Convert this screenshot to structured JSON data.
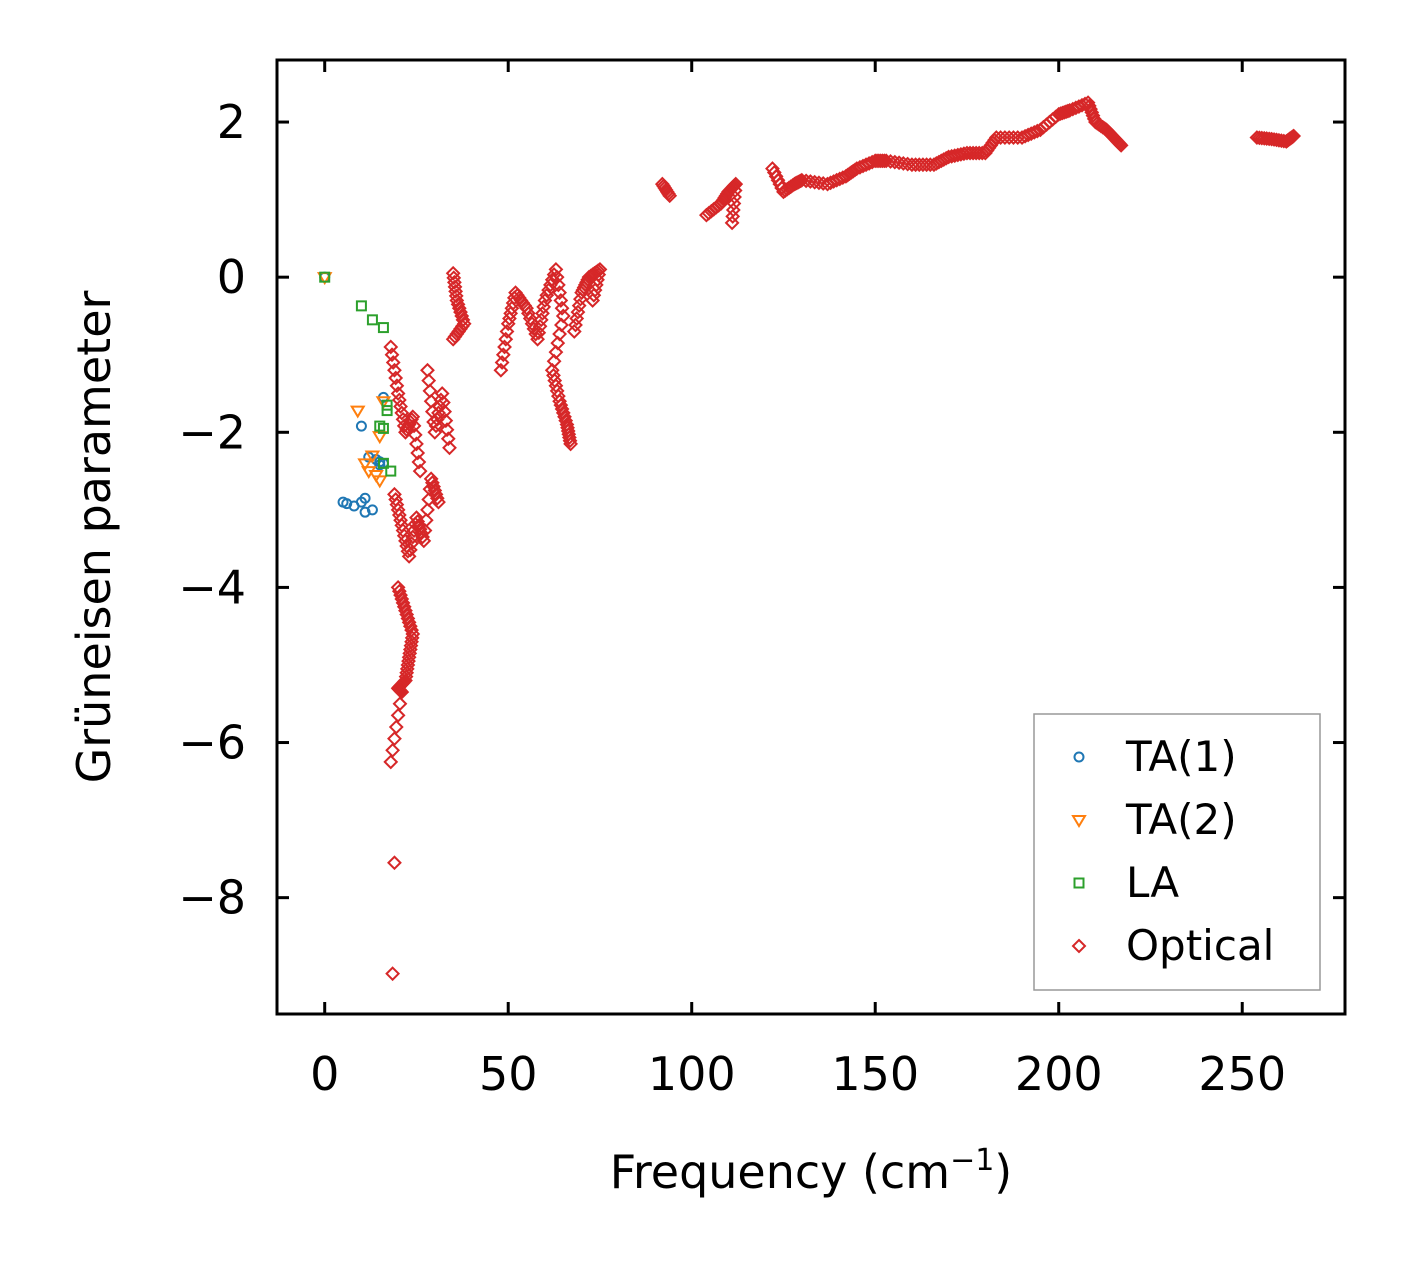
{
  "chart_data": {
    "type": "scatter",
    "title": "",
    "xlabel": "Frequency (cm",
    "xlabel_sup": "−1",
    "xlabel_close": ")",
    "ylabel": "Grüneisen parameter",
    "xlim": [
      -13,
      278
    ],
    "ylim": [
      -9.5,
      2.8
    ],
    "xticks": [
      0,
      50,
      100,
      150,
      200,
      250
    ],
    "xtick_labels": [
      "0",
      "50",
      "100",
      "150",
      "200",
      "250"
    ],
    "yticks": [
      2,
      0,
      -2,
      -4,
      -6,
      -8
    ],
    "ytick_labels": [
      "2",
      "0",
      "−2",
      "−4",
      "−6",
      "−8"
    ],
    "legend_position": "lower-right",
    "series": [
      {
        "name": "TA(1)",
        "marker": "circle",
        "color": "#1f77b4",
        "x": [
          0,
          5,
          6,
          8,
          10,
          11,
          11,
          12,
          13,
          14,
          15,
          15,
          16,
          16,
          10
        ],
        "y": [
          0,
          -2.9,
          -2.92,
          -2.95,
          -2.9,
          -2.85,
          -3.03,
          -2.32,
          -3.0,
          -2.35,
          -2.38,
          -2.42,
          -2.4,
          -1.55,
          -1.92
        ]
      },
      {
        "name": "TA(2)",
        "marker": "triangle-down",
        "color": "#ff7f0e",
        "x": [
          0,
          9,
          11,
          12,
          13,
          14,
          15,
          15,
          16
        ],
        "y": [
          0,
          -1.72,
          -2.4,
          -2.5,
          -2.3,
          -2.55,
          -2.05,
          -2.62,
          -1.6
        ]
      },
      {
        "name": "LA",
        "marker": "square",
        "color": "#2ca02c",
        "x": [
          0,
          10,
          13,
          16,
          15,
          16,
          17,
          17,
          18,
          16
        ],
        "y": [
          0,
          -0.37,
          -0.55,
          -0.65,
          -1.92,
          -2.4,
          -1.65,
          -1.72,
          -2.5,
          -1.95
        ]
      },
      {
        "name": "Optical",
        "marker": "diamond",
        "color": "#d62728",
        "segments": [
          [
            18,
            -0.9
          ],
          [
            20,
            -1.5
          ],
          [
            22,
            -2.0
          ],
          [
            24,
            -1.8
          ],
          [
            26,
            -2.5
          ],
          [
            28,
            -1.2
          ],
          [
            30,
            -2.0
          ],
          [
            32,
            -1.5
          ],
          [
            34,
            -2.2
          ],
          [
            19,
            -2.8
          ],
          [
            21,
            -3.2
          ],
          [
            23,
            -3.6
          ],
          [
            25,
            -3.1
          ],
          [
            27,
            -3.4
          ],
          [
            29,
            -2.6
          ],
          [
            31,
            -2.9
          ],
          [
            20,
            -4.0
          ],
          [
            22,
            -4.3
          ],
          [
            24,
            -4.6
          ],
          [
            23,
            -4.9
          ],
          [
            22,
            -5.2
          ],
          [
            20,
            -5.3
          ],
          [
            21,
            -5.35
          ],
          [
            18,
            -6.25
          ],
          [
            19,
            -7.55
          ],
          [
            18.5,
            -8.98
          ],
          [
            35,
            0.05
          ],
          [
            36,
            -0.3
          ],
          [
            38,
            -0.6
          ],
          [
            35,
            -0.8
          ],
          [
            48,
            -1.2
          ],
          [
            50,
            -0.6
          ],
          [
            52,
            -0.2
          ],
          [
            55,
            -0.4
          ],
          [
            58,
            -0.8
          ],
          [
            60,
            -0.3
          ],
          [
            63,
            0.1
          ],
          [
            65,
            -0.5
          ],
          [
            62,
            -1.2
          ],
          [
            64,
            -1.6
          ],
          [
            66,
            -1.9
          ],
          [
            67,
            -2.15
          ],
          [
            68,
            -0.7
          ],
          [
            70,
            -0.2
          ],
          [
            72,
            0.0
          ],
          [
            75,
            0.1
          ],
          [
            73,
            -0.3
          ],
          [
            92,
            1.2
          ],
          [
            94,
            1.05
          ],
          [
            104,
            0.8
          ],
          [
            108,
            0.95
          ],
          [
            110,
            1.1
          ],
          [
            112,
            1.2
          ],
          [
            111,
            0.7
          ],
          [
            122,
            1.4
          ],
          [
            125,
            1.1
          ],
          [
            128,
            1.2
          ],
          [
            130,
            1.25
          ],
          [
            137,
            1.2
          ],
          [
            142,
            1.3
          ],
          [
            145,
            1.4
          ],
          [
            150,
            1.5
          ],
          [
            153,
            1.5
          ],
          [
            160,
            1.45
          ],
          [
            166,
            1.45
          ],
          [
            170,
            1.55
          ],
          [
            175,
            1.6
          ],
          [
            180,
            1.6
          ],
          [
            183,
            1.8
          ],
          [
            190,
            1.8
          ],
          [
            195,
            1.9
          ],
          [
            200,
            2.1
          ],
          [
            203,
            2.15
          ],
          [
            208,
            2.25
          ],
          [
            210,
            2.0
          ],
          [
            213,
            1.9
          ],
          [
            215,
            1.8
          ],
          [
            217,
            1.7
          ],
          [
            254,
            1.8
          ],
          [
            258,
            1.78
          ],
          [
            262,
            1.75
          ],
          [
            264,
            1.82
          ]
        ]
      }
    ]
  }
}
